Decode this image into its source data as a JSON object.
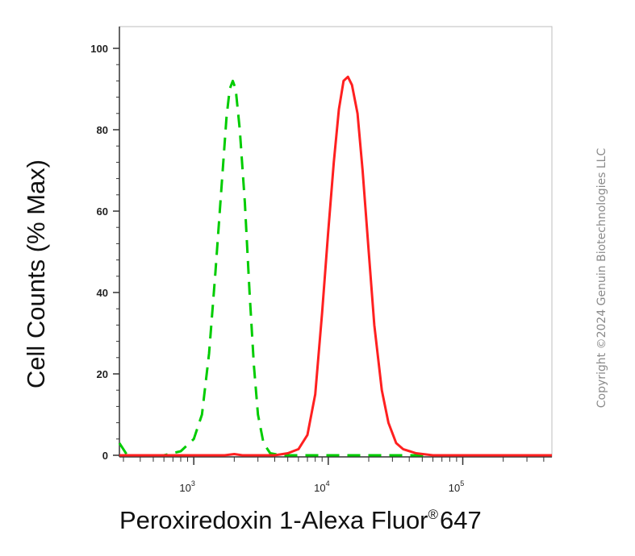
{
  "chart_data": {
    "type": "line",
    "title": "",
    "xlabel": "Peroxiredoxin 1-Alexa Fluor",
    "xlabel_mark": "®",
    "xlabel_suffix": "647",
    "ylabel": "Cell Counts (% Max)",
    "x_scale": "log",
    "xlim": [
      280,
      460000
    ],
    "ylim": [
      0,
      100
    ],
    "y_ticks": [
      0,
      20,
      40,
      60,
      80,
      100
    ],
    "x_major_ticks": [
      {
        "value": 1000,
        "base": "10",
        "exp": "3"
      },
      {
        "value": 10000,
        "base": "10",
        "exp": "4"
      },
      {
        "value": 100000,
        "base": "10",
        "exp": "5"
      }
    ],
    "grid": false,
    "legend": "none",
    "series": [
      {
        "color": "#00cc00",
        "style": "dashed",
        "points": [
          [
            280,
            3
          ],
          [
            320,
            0
          ],
          [
            600,
            0
          ],
          [
            800,
            1
          ],
          [
            1000,
            4
          ],
          [
            1150,
            10
          ],
          [
            1300,
            25
          ],
          [
            1450,
            45
          ],
          [
            1600,
            65
          ],
          [
            1750,
            83
          ],
          [
            1850,
            90
          ],
          [
            1950,
            92
          ],
          [
            2050,
            90
          ],
          [
            2200,
            80
          ],
          [
            2400,
            62
          ],
          [
            2600,
            40
          ],
          [
            2800,
            22
          ],
          [
            3000,
            10
          ],
          [
            3300,
            3
          ],
          [
            3700,
            0.5
          ],
          [
            4500,
            0
          ],
          [
            10000,
            0
          ],
          [
            100000,
            0
          ],
          [
            460000,
            0
          ]
        ]
      },
      {
        "color": "#ff2020",
        "style": "solid",
        "points": [
          [
            280,
            0
          ],
          [
            1700,
            0
          ],
          [
            2000,
            0.3
          ],
          [
            2300,
            0
          ],
          [
            4000,
            0
          ],
          [
            5000,
            0.5
          ],
          [
            6000,
            1.5
          ],
          [
            7000,
            5
          ],
          [
            8000,
            15
          ],
          [
            9000,
            35
          ],
          [
            10000,
            55
          ],
          [
            11000,
            72
          ],
          [
            12000,
            85
          ],
          [
            13000,
            92
          ],
          [
            14000,
            93
          ],
          [
            15000,
            91
          ],
          [
            16500,
            84
          ],
          [
            18000,
            70
          ],
          [
            20000,
            50
          ],
          [
            22000,
            32
          ],
          [
            25000,
            16
          ],
          [
            28000,
            8
          ],
          [
            32000,
            3
          ],
          [
            36000,
            1.5
          ],
          [
            45000,
            0.5
          ],
          [
            60000,
            0
          ],
          [
            460000,
            0
          ]
        ]
      }
    ]
  },
  "copyright": "Copyright ©2024 Genuin Biotechnologies LLC"
}
